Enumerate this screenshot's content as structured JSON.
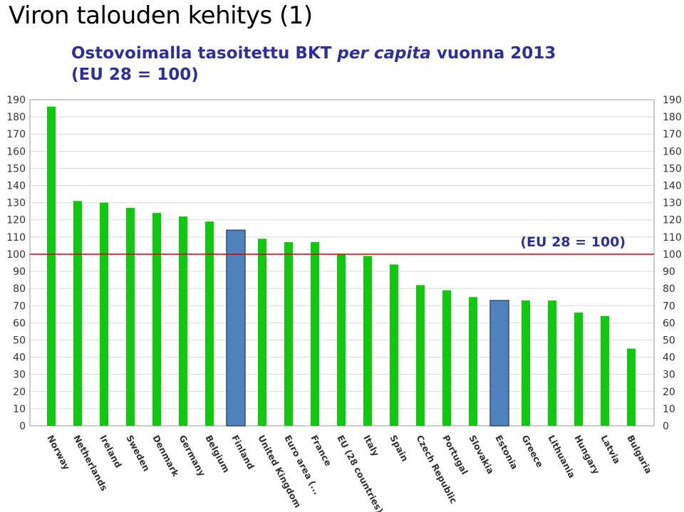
{
  "slide": {
    "title": "Viron talouden kehitys (1)",
    "subtitle_part1": "Ostovoimalla tasoitettu  BKT ",
    "subtitle_italic": "per capita",
    "subtitle_part2": " vuonna 2013",
    "subtitle_line2": "(EU 28 = 100)"
  },
  "chart_data": {
    "type": "bar",
    "categories": [
      "Norway",
      "Netherlands",
      "Ireland",
      "Sweden",
      "Denmark",
      "Germany",
      "Belgium",
      "Finland",
      "United Kingdom",
      "Euro area (...",
      "France",
      "EU (28 countries)",
      "Italy",
      "Spain",
      "Czech Republic",
      "Portugal",
      "Slovakia",
      "Estonia",
      "Greece",
      "Lithuania",
      "Hungary",
      "Latvia",
      "Bulgaria"
    ],
    "values": [
      186,
      131,
      130,
      127,
      124,
      122,
      119,
      114,
      109,
      107,
      107,
      100,
      99,
      94,
      82,
      79,
      75,
      73,
      73,
      73,
      66,
      64,
      45
    ],
    "highlighted": [
      "Finland",
      "Estonia"
    ],
    "ylim": [
      0,
      190
    ],
    "yticks": [
      0,
      10,
      20,
      30,
      40,
      50,
      60,
      70,
      80,
      90,
      100,
      110,
      120,
      130,
      140,
      150,
      160,
      170,
      180,
      190
    ],
    "reference_line": {
      "value": 100,
      "label": "(EU 28 = 100)"
    },
    "grid": true,
    "colors": {
      "bar": "#11c811",
      "highlight": "#4f81bd",
      "highlight_border": "#2f4f6f",
      "reference_line": "#cc0000",
      "grid": "#d9d9d9"
    }
  }
}
